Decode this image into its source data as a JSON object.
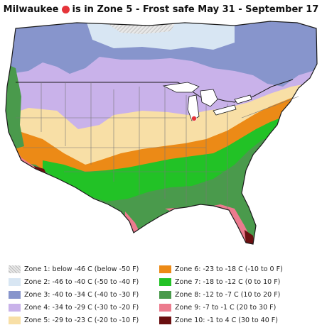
{
  "title": {
    "city": "Milwaukee",
    "text": "is in Zone 5 - Frost safe May 31 - September 17",
    "marker_color": "#e5343a"
  },
  "legend": [
    {
      "label": "Zone 1: below -46 C (below -50 F)",
      "color": "#dcdcdc",
      "pattern": "hatched"
    },
    {
      "label": "Zone 2: -46 to -40 C (-50 to -40 F)",
      "color": "#d8e6f3"
    },
    {
      "label": "Zone 3: -40 to -34 C (-40 to -30 F)",
      "color": "#8795cc"
    },
    {
      "label": "Zone 4: -34 to -29 C (-30 to -20 F)",
      "color": "#c9b2ea"
    },
    {
      "label": "Zone 5: -29 to -23 C (-20 to -10 F)",
      "color": "#f8dfa6"
    },
    {
      "label": "Zone 6: -23 to -18 C (-10 to 0 F)",
      "color": "#ec8a16"
    },
    {
      "label": "Zone 7: -18 to -12 C (0 to 10 F)",
      "color": "#22c226"
    },
    {
      "label": "Zone 8: -12 to -7 C (10 to 20 F)",
      "color": "#4a9a4c"
    },
    {
      "label": "Zone 9: -7 to -1 C (20 to 30 F)",
      "color": "#ec7b8e"
    },
    {
      "label": "Zone 10: -1 to 4 C (30 to 40 F)",
      "color": "#6a0f10"
    }
  ],
  "colors": {
    "water": "#ffffff",
    "boundary": "#1a1a1a",
    "state_lines": "#777777"
  }
}
